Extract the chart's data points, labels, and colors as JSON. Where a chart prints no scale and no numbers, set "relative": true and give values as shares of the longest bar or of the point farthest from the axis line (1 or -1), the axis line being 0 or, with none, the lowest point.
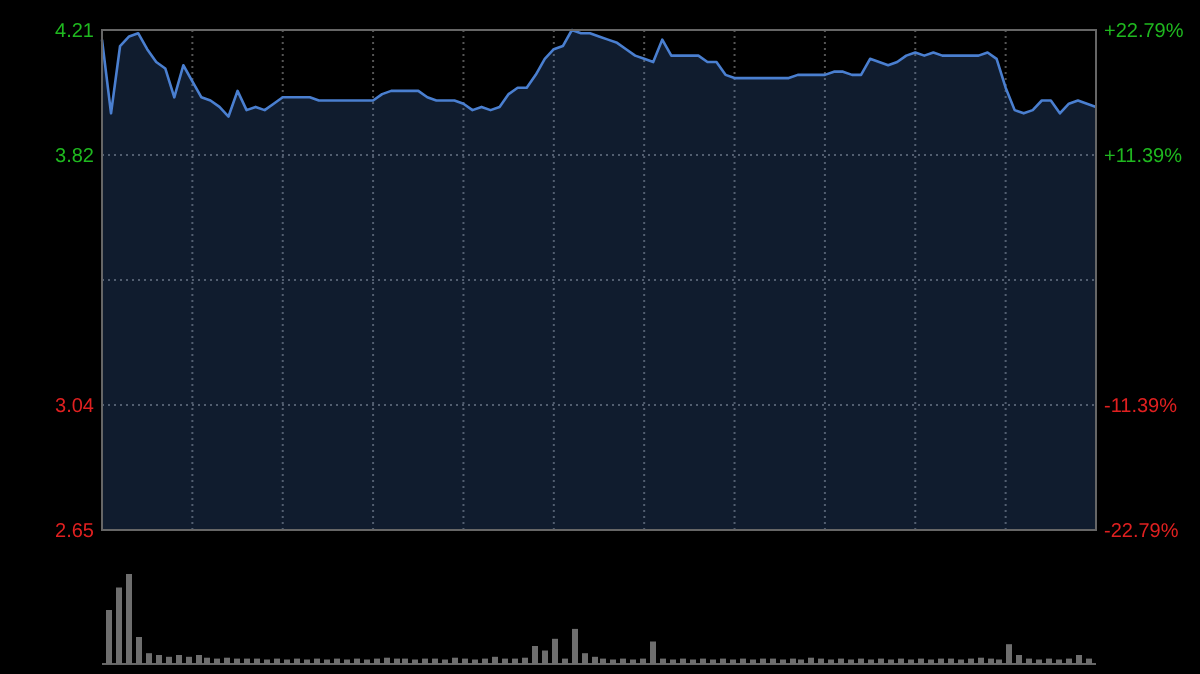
{
  "chart_data": [
    {
      "type": "area",
      "tick_labels": "y",
      "grid": true,
      "categories": [
        null,
        null,
        null,
        null,
        null,
        null,
        null,
        null,
        null,
        null,
        null,
        null,
        null,
        null,
        null,
        null,
        null,
        null,
        null,
        null,
        null,
        null,
        null,
        null,
        null,
        null,
        null,
        null,
        null,
        null,
        null,
        null,
        null,
        null,
        null,
        null,
        null,
        null,
        null,
        null,
        null,
        null,
        null,
        null,
        null,
        null,
        null,
        null,
        null,
        null,
        null,
        null,
        null,
        null,
        null,
        null,
        null,
        null,
        null,
        null,
        null,
        null,
        null,
        null,
        null,
        null,
        null,
        null,
        null,
        null,
        null,
        null,
        null,
        null,
        null,
        null,
        null,
        null,
        null,
        null,
        null,
        null,
        null,
        null,
        null,
        null,
        null,
        null,
        null,
        null,
        null,
        null,
        null,
        null,
        null,
        null,
        null,
        null,
        null,
        null,
        null,
        null,
        null,
        null,
        null,
        null,
        null,
        null,
        null,
        null,
        null
      ],
      "series": [
        {
          "color": "#4a7fd0",
          "values": [
            4.18,
            3.95,
            4.16,
            4.19,
            4.2,
            4.15,
            4.11,
            4.09,
            4.0,
            4.1,
            4.05,
            4.0,
            3.99,
            3.97,
            3.94,
            4.02,
            3.96,
            3.97,
            3.96,
            3.98,
            4.0,
            4.0,
            4.0,
            4.0,
            3.99,
            3.99,
            3.99,
            3.99,
            3.99,
            3.99,
            3.99,
            4.01,
            4.02,
            4.02,
            4.02,
            4.02,
            4.0,
            3.99,
            3.99,
            3.99,
            3.98,
            3.96,
            3.97,
            3.96,
            3.97,
            4.01,
            4.03,
            4.03,
            4.07,
            4.12,
            4.15,
            4.16,
            4.21,
            4.2,
            4.2,
            4.19,
            4.18,
            4.17,
            4.15,
            4.13,
            4.12,
            4.11,
            4.18,
            4.13,
            4.13,
            4.13,
            4.13,
            4.11,
            4.11,
            4.07,
            4.06,
            4.06,
            4.06,
            4.06,
            4.06,
            4.06,
            4.06,
            4.07,
            4.07,
            4.07,
            4.07,
            4.08,
            4.08,
            4.07,
            4.07,
            4.12,
            4.11,
            4.1,
            4.11,
            4.13,
            4.14,
            4.13,
            4.14,
            4.13,
            4.13,
            4.13,
            4.13,
            4.13,
            4.14,
            4.12,
            4.03,
            3.96,
            3.95,
            3.96,
            3.99,
            3.99,
            3.95,
            3.98,
            3.99,
            3.98,
            3.97
          ]
        }
      ],
      "ylim": [
        2.65,
        4.21
      ],
      "yticks": [
        2.65,
        3.04,
        {
          "value": 3.43,
          "label": null
        },
        3.82,
        4.21
      ],
      "y2lim": [
        -22.79,
        22.79
      ],
      "y2ticks": [
        {
          "value": -22.79,
          "label": "-22.79%"
        },
        {
          "value": -11.39,
          "label": "-11.39%"
        },
        {
          "value": 11.39,
          "label": "+11.39%"
        },
        {
          "value": 22.79,
          "label": "+22.79%"
        }
      ]
    },
    {
      "type": "bar",
      "relative": true,
      "color": "#6e6e6e",
      "categories": [
        null,
        null,
        null,
        null,
        null,
        null,
        null,
        null,
        null,
        null,
        null,
        null,
        null,
        null,
        null,
        null,
        null,
        null,
        null,
        null,
        null,
        null,
        null,
        null,
        null,
        null,
        null,
        null,
        null,
        null,
        null,
        null,
        null,
        null,
        null,
        null,
        null,
        null,
        null,
        null,
        null,
        null,
        null,
        null,
        null,
        null,
        null,
        null,
        null,
        null,
        null,
        null,
        null,
        null,
        null,
        null,
        null,
        null,
        null,
        null,
        null,
        null,
        null,
        null,
        null,
        null,
        null,
        null,
        null,
        null,
        null,
        null,
        null,
        null,
        null,
        null,
        null,
        null,
        null,
        null,
        null,
        null,
        null,
        null,
        null,
        null,
        null,
        null,
        null,
        null,
        null,
        null,
        null,
        null,
        null,
        null,
        null,
        null,
        null,
        null
      ],
      "values": [
        0.6,
        0.85,
        1.0,
        0.3,
        0.12,
        0.1,
        0.08,
        0.1,
        0.08,
        0.1,
        0.07,
        0.06,
        0.07,
        0.06,
        0.06,
        0.06,
        0.05,
        0.06,
        0.05,
        0.06,
        0.05,
        0.06,
        0.05,
        0.06,
        0.05,
        0.06,
        0.05,
        0.06,
        0.07,
        0.06,
        0.06,
        0.05,
        0.06,
        0.06,
        0.05,
        0.07,
        0.06,
        0.05,
        0.06,
        0.08,
        0.06,
        0.06,
        0.07,
        0.2,
        0.15,
        0.28,
        0.06,
        0.39,
        0.12,
        0.08,
        0.06,
        0.05,
        0.06,
        0.05,
        0.06,
        0.25,
        0.06,
        0.05,
        0.06,
        0.05,
        0.06,
        0.05,
        0.06,
        0.05,
        0.06,
        0.05,
        0.06,
        0.06,
        0.05,
        0.06,
        0.05,
        0.07,
        0.06,
        0.05,
        0.06,
        0.05,
        0.06,
        0.05,
        0.06,
        0.05,
        0.06,
        0.05,
        0.06,
        0.05,
        0.06,
        0.06,
        0.05,
        0.06,
        0.07,
        0.06,
        0.05,
        0.22,
        0.1,
        0.06,
        0.05,
        0.06,
        0.05,
        0.06,
        0.1,
        0.06
      ]
    }
  ]
}
